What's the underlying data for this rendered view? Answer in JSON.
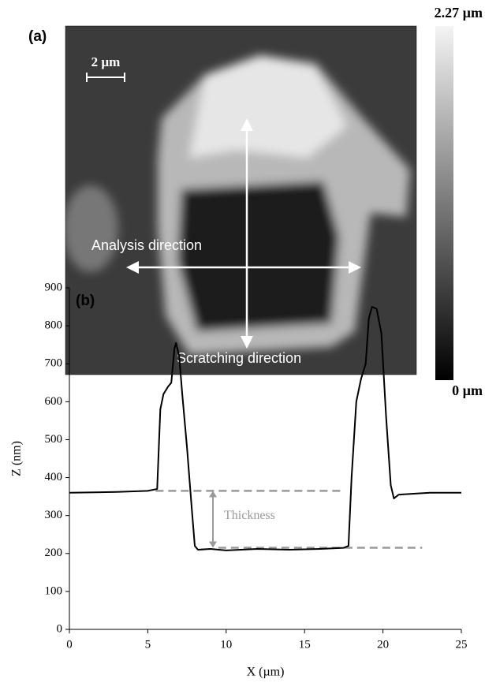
{
  "panel_a": {
    "label": "(a)",
    "scale_bar": "2 µm",
    "colorbar_max": "2.27 µm",
    "colorbar_min": "0 µm",
    "arrow_labels": [
      "Analysis direction",
      "Scratching direction"
    ]
  },
  "chart_data": {
    "type": "line",
    "panel_label": "(b)",
    "x_label": "X (µm)",
    "y_label": "Z (nm)",
    "annotation": "Thickness",
    "color": "#000000",
    "x": [
      0,
      3,
      5,
      5.6,
      5.8,
      6.0,
      6.3,
      6.5,
      6.7,
      6.8,
      7.0,
      7.2,
      7.5,
      7.8,
      8.0,
      8.2,
      9,
      10,
      12,
      14,
      16,
      17.5,
      17.8,
      18.0,
      18.3,
      18.6,
      18.9,
      19.1,
      19.3,
      19.6,
      19.9,
      20.2,
      20.5,
      20.7,
      21,
      23,
      25
    ],
    "values": [
      360,
      362,
      365,
      370,
      580,
      620,
      640,
      650,
      740,
      755,
      720,
      620,
      480,
      320,
      220,
      210,
      212,
      208,
      212,
      210,
      212,
      215,
      220,
      400,
      600,
      660,
      700,
      820,
      850,
      845,
      780,
      560,
      380,
      345,
      355,
      360,
      360
    ],
    "reference_lines": [
      {
        "y": 365,
        "xlim": [
          5.5,
          17.5
        ]
      },
      {
        "y": 215,
        "xlim": [
          9.5,
          22.5
        ]
      }
    ],
    "reference_color": "#999999",
    "xlim": [
      0,
      25
    ],
    "xticks": [
      0,
      5,
      10,
      15,
      20,
      25
    ],
    "ylim": [
      0,
      900
    ],
    "yticks": [
      0,
      100,
      200,
      300,
      400,
      500,
      600,
      700,
      800,
      900
    ]
  }
}
